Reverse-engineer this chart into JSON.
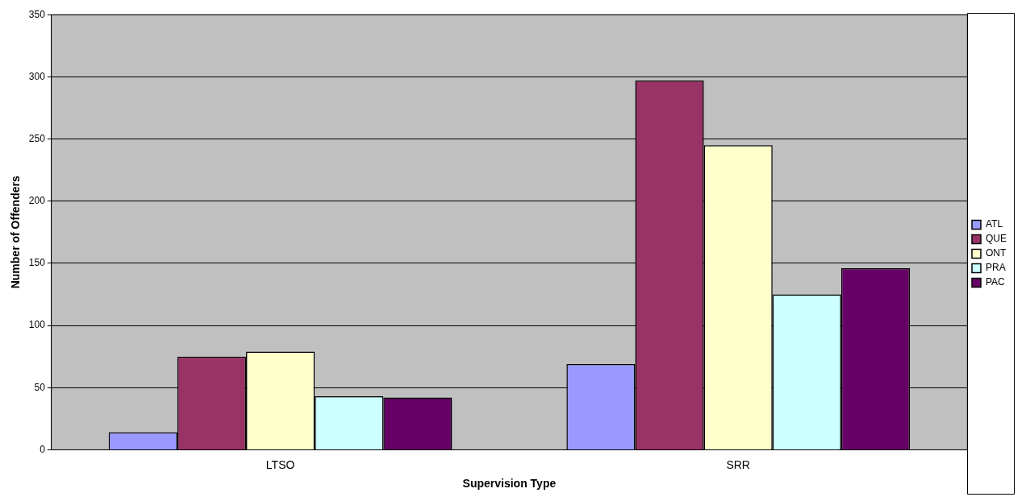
{
  "chart_data": {
    "type": "bar",
    "xlabel": "Supervision Type",
    "ylabel": "Number of Offenders",
    "categories": [
      "LTSO",
      "SRR"
    ],
    "series": [
      {
        "name": "ATL",
        "color": "#9999ff",
        "values": [
          14,
          69
        ]
      },
      {
        "name": "QUE",
        "color": "#993366",
        "values": [
          75,
          297
        ]
      },
      {
        "name": "ONT",
        "color": "#ffffcc",
        "values": [
          79,
          245
        ]
      },
      {
        "name": "PRA",
        "color": "#ccffff",
        "values": [
          43,
          125
        ]
      },
      {
        "name": "PAC",
        "color": "#660066",
        "values": [
          42,
          146
        ]
      }
    ],
    "ylim": [
      0,
      350
    ],
    "yticks": [
      0,
      50,
      100,
      150,
      200,
      250,
      300,
      350
    ],
    "grid": "y",
    "legend": "right"
  }
}
